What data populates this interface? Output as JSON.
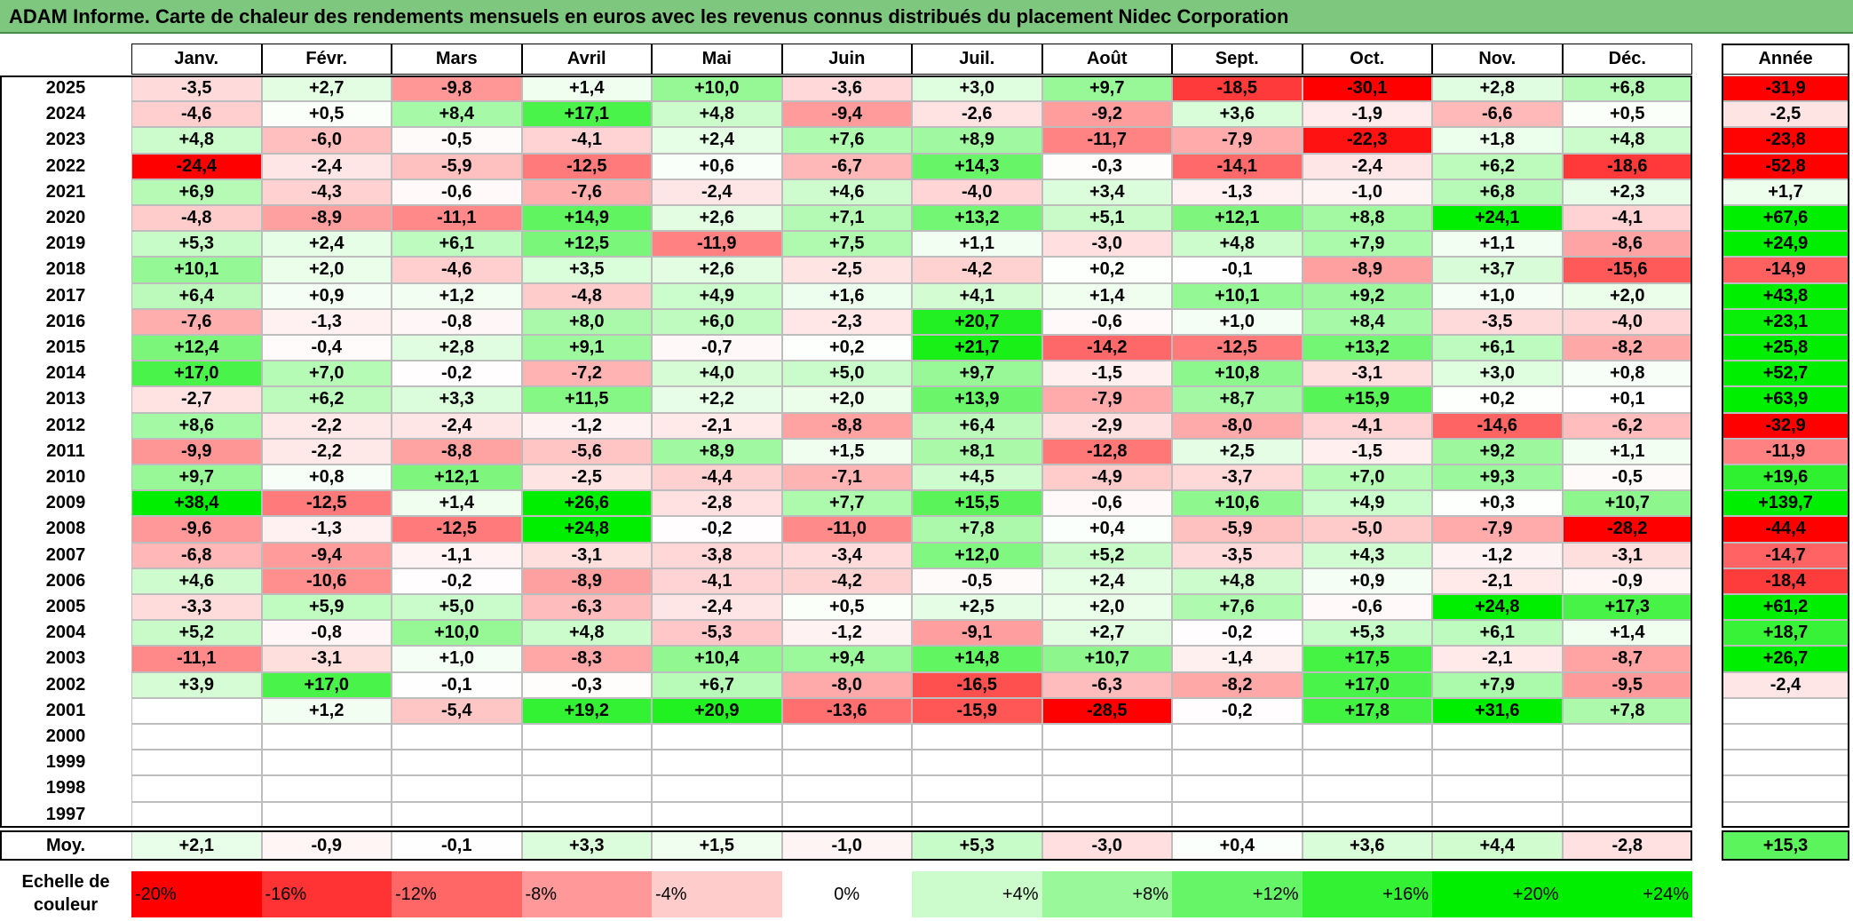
{
  "chart_data": {
    "type": "heatmap",
    "title": "ADAM Informe. Carte de chaleur des rendements mensuels en euros avec les revenus connus distribués du placement Nidec Corporation",
    "months": [
      "Janv.",
      "Févr.",
      "Mars",
      "Avril",
      "Mai",
      "Juin",
      "Juil.",
      "Août",
      "Sept.",
      "Oct.",
      "Nov.",
      "Déc."
    ],
    "annual_header": "Année",
    "years": [
      "2025",
      "2024",
      "2023",
      "2022",
      "2021",
      "2020",
      "2019",
      "2018",
      "2017",
      "2016",
      "2015",
      "2014",
      "2013",
      "2012",
      "2011",
      "2010",
      "2009",
      "2008",
      "2007",
      "2006",
      "2005",
      "2004",
      "2003",
      "2002",
      "2001",
      "2000",
      "1999",
      "1998",
      "1997"
    ],
    "values": [
      [
        -3.5,
        2.7,
        -9.8,
        1.4,
        10.0,
        -3.6,
        3.0,
        9.7,
        -18.5,
        -30.1,
        2.8,
        6.8
      ],
      [
        -4.6,
        0.5,
        8.4,
        17.1,
        4.8,
        -9.4,
        -2.6,
        -9.2,
        3.6,
        -1.9,
        -6.6,
        0.5
      ],
      [
        4.8,
        -6.0,
        -0.5,
        -4.1,
        2.4,
        7.6,
        8.9,
        -11.7,
        -7.9,
        -22.3,
        1.8,
        4.8
      ],
      [
        -24.4,
        -2.4,
        -5.9,
        -12.5,
        0.6,
        -6.7,
        14.3,
        -0.3,
        -14.1,
        -2.4,
        6.2,
        -18.6
      ],
      [
        6.9,
        -4.3,
        -0.6,
        -7.6,
        -2.4,
        4.6,
        -4.0,
        3.4,
        -1.3,
        -1.0,
        6.8,
        2.3
      ],
      [
        -4.8,
        -8.9,
        -11.1,
        14.9,
        2.6,
        7.1,
        13.2,
        5.1,
        12.1,
        8.8,
        24.1,
        -4.1
      ],
      [
        5.3,
        2.4,
        6.1,
        12.5,
        -11.9,
        7.5,
        1.1,
        -3.0,
        4.8,
        7.9,
        1.1,
        -8.6
      ],
      [
        10.1,
        2.0,
        -4.6,
        3.5,
        2.6,
        -2.5,
        -4.2,
        0.2,
        -0.1,
        -8.9,
        3.7,
        -15.6
      ],
      [
        6.4,
        0.9,
        1.2,
        -4.8,
        4.9,
        1.6,
        4.1,
        1.4,
        10.1,
        9.2,
        1.0,
        2.0
      ],
      [
        -7.6,
        -1.3,
        -0.8,
        8.0,
        6.0,
        -2.3,
        20.7,
        -0.6,
        1.0,
        8.4,
        -3.5,
        -4.0
      ],
      [
        12.4,
        -0.4,
        2.8,
        9.1,
        -0.7,
        0.2,
        21.7,
        -14.2,
        -12.5,
        13.2,
        6.1,
        -8.2
      ],
      [
        17.0,
        7.0,
        -0.2,
        -7.2,
        4.0,
        5.0,
        9.7,
        -1.5,
        10.8,
        -3.1,
        3.0,
        0.8
      ],
      [
        -2.7,
        6.2,
        3.3,
        11.5,
        2.2,
        2.0,
        13.9,
        -7.9,
        8.7,
        15.9,
        0.2,
        0.1
      ],
      [
        8.6,
        -2.2,
        -2.4,
        -1.2,
        -2.1,
        -8.8,
        6.4,
        -2.9,
        -8.0,
        -4.1,
        -14.6,
        -6.2
      ],
      [
        -9.9,
        -2.2,
        -8.8,
        -5.6,
        8.9,
        1.5,
        8.1,
        -12.8,
        2.5,
        -1.5,
        9.2,
        1.1
      ],
      [
        9.7,
        0.8,
        12.1,
        -2.5,
        -4.4,
        -7.1,
        4.5,
        -4.9,
        -3.7,
        7.0,
        9.3,
        -0.5
      ],
      [
        38.4,
        -12.5,
        1.4,
        26.6,
        -2.8,
        7.7,
        15.5,
        -0.6,
        10.6,
        4.9,
        0.3,
        10.7
      ],
      [
        -9.6,
        -1.3,
        -12.5,
        24.8,
        -0.2,
        -11.0,
        7.8,
        0.4,
        -5.9,
        -5.0,
        -7.9,
        -28.2
      ],
      [
        -6.8,
        -9.4,
        -1.1,
        -3.1,
        -3.8,
        -3.4,
        12.0,
        5.2,
        -3.5,
        4.3,
        -1.2,
        -3.1
      ],
      [
        4.6,
        -10.6,
        -0.2,
        -8.9,
        -4.1,
        -4.2,
        -0.5,
        2.4,
        4.8,
        0.9,
        -2.1,
        -0.9
      ],
      [
        -3.3,
        5.9,
        5.0,
        -6.3,
        -2.4,
        0.5,
        2.5,
        2.0,
        7.6,
        -0.6,
        24.8,
        17.3
      ],
      [
        5.2,
        -0.8,
        10.0,
        4.8,
        -5.3,
        -1.2,
        -9.1,
        2.7,
        -0.2,
        5.3,
        6.1,
        1.4
      ],
      [
        -11.1,
        -3.1,
        1.0,
        -8.3,
        10.4,
        9.4,
        14.8,
        10.7,
        -1.4,
        17.5,
        -2.1,
        -8.7
      ],
      [
        3.9,
        17.0,
        -0.1,
        -0.3,
        6.7,
        -8.0,
        -16.5,
        -6.3,
        -8.2,
        17.0,
        7.9,
        -9.5
      ],
      [
        null,
        1.2,
        -5.4,
        19.2,
        20.9,
        -13.6,
        -15.9,
        -28.5,
        -0.2,
        17.8,
        31.6,
        7.8
      ],
      [
        null,
        null,
        null,
        null,
        null,
        null,
        null,
        null,
        null,
        null,
        null,
        null
      ],
      [
        null,
        null,
        null,
        null,
        null,
        null,
        null,
        null,
        null,
        null,
        null,
        null
      ],
      [
        null,
        null,
        null,
        null,
        null,
        null,
        null,
        null,
        null,
        null,
        null,
        null
      ],
      [
        null,
        null,
        null,
        null,
        null,
        null,
        null,
        null,
        null,
        null,
        null,
        null
      ]
    ],
    "annual": [
      -31.9,
      -2.5,
      -23.8,
      -52.8,
      1.7,
      67.6,
      24.9,
      -14.9,
      43.8,
      23.1,
      25.8,
      52.7,
      63.9,
      -32.9,
      -11.9,
      19.6,
      139.7,
      -44.4,
      -14.7,
      -18.4,
      61.2,
      18.7,
      26.7,
      -2.4,
      null,
      null,
      null,
      null,
      null
    ],
    "average_label": "Moy.",
    "averages": [
      2.1,
      -0.9,
      -0.1,
      3.3,
      1.5,
      -1.0,
      5.3,
      -3.0,
      0.4,
      3.6,
      4.4,
      -2.8
    ],
    "average_annual": 15.3,
    "scale_label": "Echelle de couleur",
    "scale": [
      "-20%",
      "-16%",
      "-12%",
      "-8%",
      "-4%",
      "0%",
      "+4%",
      "+8%",
      "+12%",
      "+16%",
      "+20%",
      "+24%"
    ],
    "scale_values": [
      -20,
      -16,
      -12,
      -8,
      -4,
      0,
      4,
      8,
      12,
      16,
      20,
      24
    ],
    "colors": {
      "negative_max": "#ff0000",
      "neutral": "#ffffff",
      "positive_max": "#00ee00",
      "title_bar": "#7ec77e"
    }
  }
}
